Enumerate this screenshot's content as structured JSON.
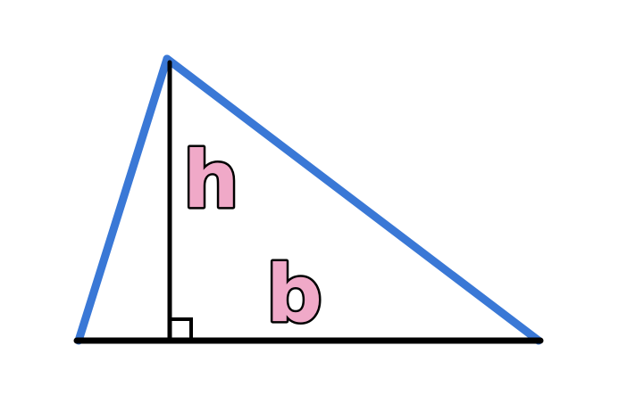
{
  "labels": {
    "height": "h",
    "base": "b"
  },
  "colors": {
    "background": "#ffffff",
    "triangle_sides": "#3a78d6",
    "base_and_height": "#000000",
    "label_fill": "#f0a9c8",
    "label_outline": "#000000"
  }
}
